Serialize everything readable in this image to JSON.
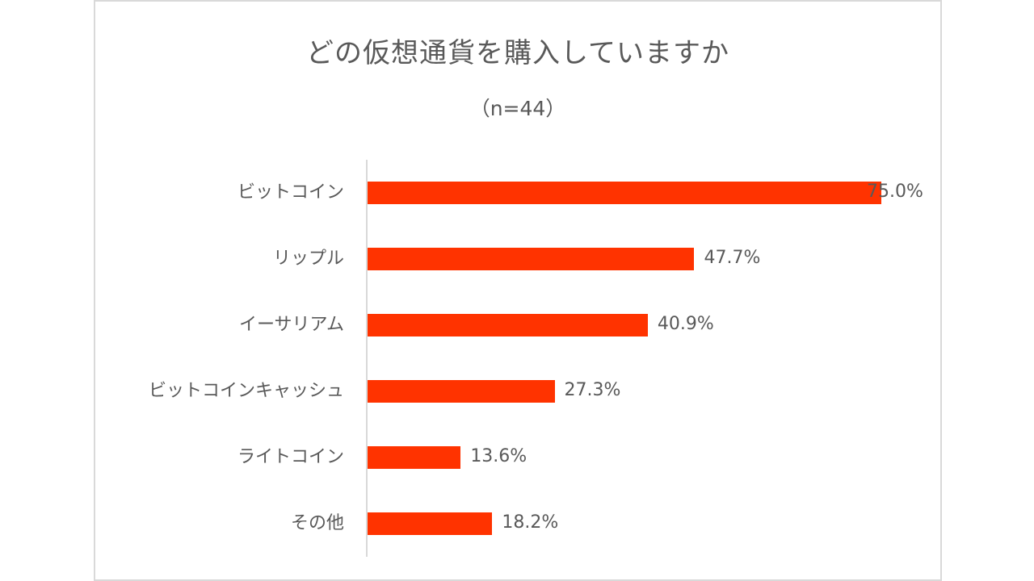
{
  "chart_data": {
    "type": "bar",
    "orientation": "horizontal",
    "title": "どの仮想通貨を購入していますか",
    "subtitle": "（n=44）",
    "categories": [
      "ビットコイン",
      "リップル",
      "イーサリアム",
      "ビットコインキャッシュ",
      "ライトコイン",
      "その他"
    ],
    "values": [
      75.0,
      47.7,
      40.9,
      27.3,
      13.6,
      18.2
    ],
    "value_labels": [
      "75.0%",
      "47.7%",
      "40.9%",
      "27.3%",
      "13.6%",
      "18.2%"
    ],
    "unit": "%",
    "xlabel": "",
    "ylabel": "",
    "grid": false,
    "legend": "none",
    "bar_color": "#ff3300"
  },
  "colors": {
    "bar": "#ff3300",
    "text": "#595959",
    "frame": "#d9d9d9",
    "axis": "#d9d9d9"
  }
}
